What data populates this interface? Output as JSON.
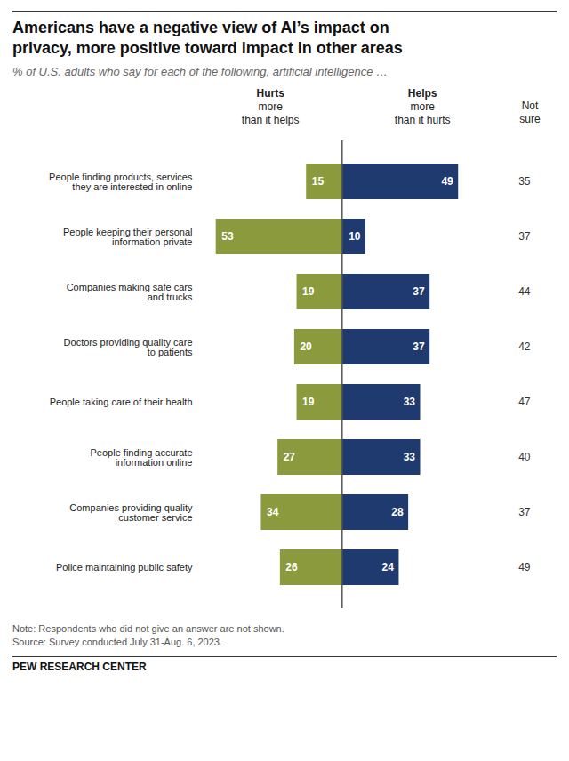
{
  "chart_data": {
    "type": "bar",
    "orientation": "horizontal",
    "title": "Americans have a negative view of AI’s impact on\nprivacy, more positive toward impact in other areas",
    "subtitle": "% of U.S. adults who say for each of the following, artificial intelligence …",
    "categories": [
      "People finding products, services\nthey are interested in online",
      "People keeping their personal\ninformation private",
      "Companies making safe cars\nand trucks",
      "Doctors providing quality care\nto patients",
      "People taking care of their health",
      "People finding accurate\ninformation online",
      "Companies providing quality\ncustomer service",
      "Police maintaining public safety"
    ],
    "series": [
      {
        "name": "Hurts more than it helps",
        "color": "#8a9a3c",
        "values": [
          15,
          53,
          19,
          20,
          19,
          27,
          34,
          26
        ]
      },
      {
        "name": "Helps more than it hurts",
        "color": "#1f3a6e",
        "values": [
          49,
          10,
          37,
          37,
          33,
          33,
          28,
          24
        ]
      },
      {
        "name": "Not sure",
        "type": "text",
        "values": [
          35,
          37,
          44,
          42,
          47,
          40,
          37,
          49
        ]
      }
    ],
    "xlim": [
      -60,
      68
    ],
    "data_labels": true,
    "tick_labels": "y",
    "note": "Note: Respondents who did not give an answer are not shown.\nSource: Survey conducted July 31-Aug. 6, 2023.",
    "source": "PEW RESEARCH CENTER"
  }
}
